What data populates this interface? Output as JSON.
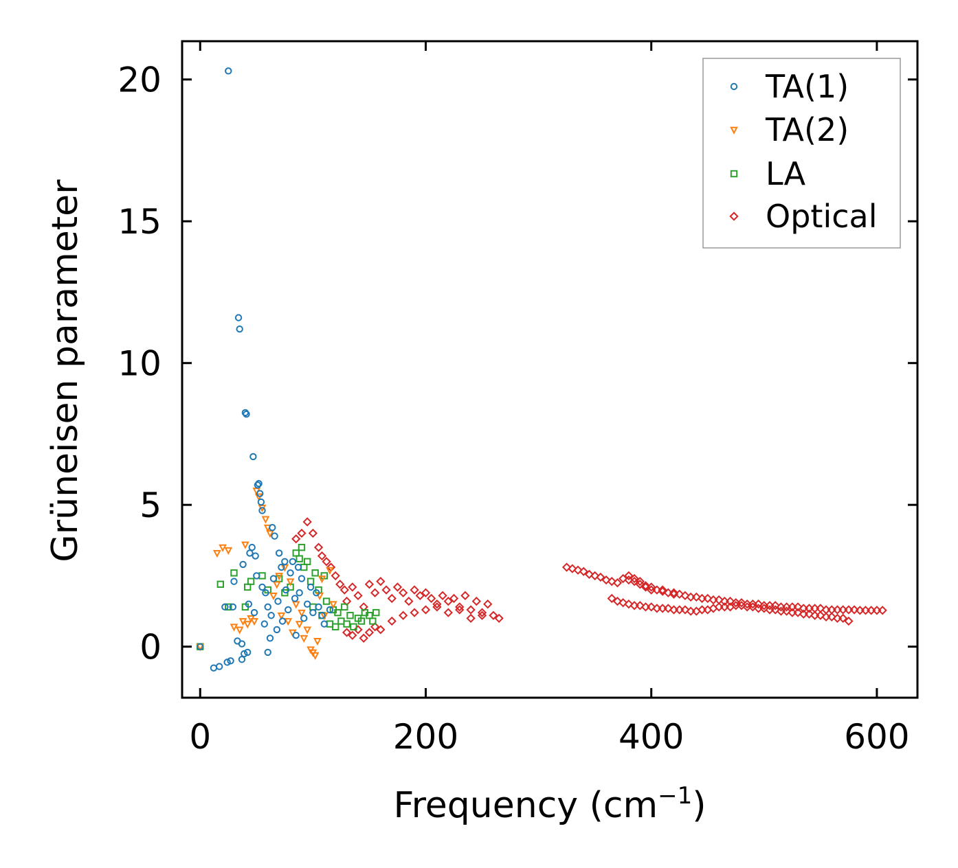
{
  "chart_data": {
    "type": "scatter",
    "title": "",
    "xlabel": "Frequency (cm",
    "xlabel_sup": "−1",
    "xlabel_close": ")",
    "ylabel": "Grüneisen parameter",
    "xlim": [
      -16,
      636
    ],
    "ylim": [
      -1.8,
      21.35
    ],
    "xticks": [
      0,
      200,
      400,
      600
    ],
    "yticks": [
      0,
      5,
      10,
      15,
      20
    ],
    "xtick_labels": [
      "0",
      "200",
      "400",
      "600"
    ],
    "ytick_labels": [
      "0",
      "5",
      "10",
      "15",
      "20"
    ],
    "grid": false,
    "legend_position": "top-right",
    "series": [
      {
        "name": "TA(1)",
        "marker": "circle",
        "color": "#1f77b4",
        "points": [
          [
            0,
            0
          ],
          [
            12,
            -0.75
          ],
          [
            17,
            -0.7
          ],
          [
            22,
            1.4
          ],
          [
            24,
            -0.55
          ],
          [
            25,
            20.3
          ],
          [
            27,
            -0.5
          ],
          [
            29,
            1.4
          ],
          [
            30,
            2.3
          ],
          [
            33,
            0.2
          ],
          [
            34,
            11.6
          ],
          [
            35,
            11.2
          ],
          [
            37,
            0.1
          ],
          [
            37,
            -0.45
          ],
          [
            38,
            2.9
          ],
          [
            39,
            -0.25
          ],
          [
            40,
            8.25
          ],
          [
            41,
            8.2
          ],
          [
            42,
            -0.2
          ],
          [
            43,
            1.5
          ],
          [
            44,
            3.3
          ],
          [
            46,
            3.5
          ],
          [
            47,
            6.7
          ],
          [
            48,
            1.2
          ],
          [
            49,
            3.2
          ],
          [
            50,
            2.5
          ],
          [
            51,
            5.7
          ],
          [
            52,
            5.75
          ],
          [
            53,
            5.4
          ],
          [
            54,
            5.1
          ],
          [
            55,
            4.8
          ],
          [
            55,
            2.1
          ],
          [
            57,
            0.8
          ],
          [
            58,
            1.9
          ],
          [
            60,
            1.4
          ],
          [
            60,
            -0.2
          ],
          [
            62,
            0.3
          ],
          [
            63,
            1.1
          ],
          [
            64,
            4.2
          ],
          [
            65,
            2.4
          ],
          [
            66,
            3.9
          ],
          [
            68,
            0.6
          ],
          [
            69,
            1.6
          ],
          [
            70,
            3.3
          ],
          [
            72,
            2.8
          ],
          [
            73,
            0.9
          ],
          [
            75,
            3.0
          ],
          [
            76,
            2.0
          ],
          [
            78,
            1.3
          ],
          [
            80,
            2.6
          ],
          [
            82,
            3.0
          ],
          [
            84,
            1.7
          ],
          [
            85,
            0.4
          ],
          [
            87,
            2.8
          ],
          [
            88,
            1.9
          ],
          [
            90,
            2.4
          ],
          [
            92,
            1.0
          ],
          [
            95,
            1.5
          ],
          [
            98,
            2.1
          ],
          [
            100,
            1.2
          ],
          [
            103,
            1.9
          ],
          [
            105,
            1.4
          ],
          [
            108,
            1.1
          ],
          [
            110,
            0.8
          ],
          [
            115,
            1.3
          ]
        ]
      },
      {
        "name": "TA(2)",
        "marker": "triangle-down",
        "color": "#ff7f0e",
        "points": [
          [
            0,
            0
          ],
          [
            15,
            3.3
          ],
          [
            20,
            3.5
          ],
          [
            25,
            3.4
          ],
          [
            30,
            0.7
          ],
          [
            35,
            0.6
          ],
          [
            38,
            0.9
          ],
          [
            40,
            3.6
          ],
          [
            42,
            0.8
          ],
          [
            45,
            1.0
          ],
          [
            48,
            0.9
          ],
          [
            50,
            5.5
          ],
          [
            52,
            5.3
          ],
          [
            55,
            4.9
          ],
          [
            58,
            4.5
          ],
          [
            60,
            4.2
          ],
          [
            62,
            4.0
          ],
          [
            65,
            1.8
          ],
          [
            68,
            2.2
          ],
          [
            70,
            2.5
          ],
          [
            72,
            1.1
          ],
          [
            75,
            2.8
          ],
          [
            78,
            0.9
          ],
          [
            80,
            2.3
          ],
          [
            82,
            0.5
          ],
          [
            85,
            1.5
          ],
          [
            88,
            0.8
          ],
          [
            90,
            1.2
          ],
          [
            92,
            0.3
          ],
          [
            95,
            0.6
          ],
          [
            98,
            -0.1
          ],
          [
            100,
            -0.2
          ],
          [
            102,
            -0.3
          ],
          [
            104,
            0.2
          ],
          [
            106,
            1.8
          ],
          [
            108,
            2.4
          ],
          [
            110,
            1.1
          ],
          [
            115,
            2.7
          ],
          [
            118,
            1.5
          ]
        ]
      },
      {
        "name": "LA",
        "marker": "square",
        "color": "#2ca02c",
        "points": [
          [
            0,
            0
          ],
          [
            18,
            2.2
          ],
          [
            25,
            1.4
          ],
          [
            30,
            2.6
          ],
          [
            40,
            1.4
          ],
          [
            42,
            2.1
          ],
          [
            45,
            2.3
          ],
          [
            55,
            2.5
          ],
          [
            60,
            2.0
          ],
          [
            70,
            2.4
          ],
          [
            75,
            1.9
          ],
          [
            80,
            2.1
          ],
          [
            85,
            3.3
          ],
          [
            88,
            3.1
          ],
          [
            90,
            3.5
          ],
          [
            92,
            2.8
          ],
          [
            95,
            3.0
          ],
          [
            98,
            2.3
          ],
          [
            100,
            1.4
          ],
          [
            102,
            2.6
          ],
          [
            105,
            2.0
          ],
          [
            108,
            1.1
          ],
          [
            110,
            2.5
          ],
          [
            112,
            1.6
          ],
          [
            115,
            0.8
          ],
          [
            118,
            1.3
          ],
          [
            120,
            0.7
          ],
          [
            122,
            1.2
          ],
          [
            125,
            0.9
          ],
          [
            128,
            1.4
          ],
          [
            130,
            0.8
          ],
          [
            133,
            1.1
          ],
          [
            136,
            0.7
          ],
          [
            140,
            1.0
          ],
          [
            143,
            0.9
          ],
          [
            146,
            1.2
          ],
          [
            150,
            1.1
          ],
          [
            153,
            0.9
          ],
          [
            156,
            1.2
          ]
        ]
      },
      {
        "name": "Optical",
        "marker": "diamond",
        "color": "#d62728",
        "points": [
          [
            85,
            3.8
          ],
          [
            90,
            4.0
          ],
          [
            95,
            4.4
          ],
          [
            100,
            4.0
          ],
          [
            105,
            3.5
          ],
          [
            108,
            3.2
          ],
          [
            112,
            3.0
          ],
          [
            116,
            2.8
          ],
          [
            120,
            2.5
          ],
          [
            124,
            2.2
          ],
          [
            128,
            2.0
          ],
          [
            130,
            1.6
          ],
          [
            135,
            2.1
          ],
          [
            140,
            1.8
          ],
          [
            145,
            1.4
          ],
          [
            150,
            2.2
          ],
          [
            155,
            1.9
          ],
          [
            160,
            2.3
          ],
          [
            165,
            2.0
          ],
          [
            170,
            1.7
          ],
          [
            175,
            2.1
          ],
          [
            180,
            1.9
          ],
          [
            185,
            1.6
          ],
          [
            190,
            2.0
          ],
          [
            195,
            1.8
          ],
          [
            200,
            1.9
          ],
          [
            205,
            1.7
          ],
          [
            210,
            1.5
          ],
          [
            215,
            1.8
          ],
          [
            220,
            1.6
          ],
          [
            225,
            1.7
          ],
          [
            230,
            1.4
          ],
          [
            235,
            1.8
          ],
          [
            240,
            1.3
          ],
          [
            245,
            1.6
          ],
          [
            250,
            1.2
          ],
          [
            255,
            1.5
          ],
          [
            260,
            1.1
          ],
          [
            265,
            1.0
          ],
          [
            130,
            0.5
          ],
          [
            135,
            0.4
          ],
          [
            140,
            0.6
          ],
          [
            145,
            0.3
          ],
          [
            150,
            0.5
          ],
          [
            155,
            0.7
          ],
          [
            160,
            0.6
          ],
          [
            170,
            0.9
          ],
          [
            180,
            1.1
          ],
          [
            190,
            1.2
          ],
          [
            200,
            1.3
          ],
          [
            210,
            1.4
          ],
          [
            220,
            1.2
          ],
          [
            230,
            1.3
          ],
          [
            240,
            1.0
          ],
          [
            250,
            1.1
          ],
          [
            325,
            2.8
          ],
          [
            330,
            2.75
          ],
          [
            335,
            2.7
          ],
          [
            340,
            2.65
          ],
          [
            345,
            2.55
          ],
          [
            350,
            2.5
          ],
          [
            355,
            2.45
          ],
          [
            360,
            2.35
          ],
          [
            365,
            2.3
          ],
          [
            370,
            2.25
          ],
          [
            375,
            2.4
          ],
          [
            380,
            2.35
          ],
          [
            385,
            2.3
          ],
          [
            390,
            2.2
          ],
          [
            395,
            2.15
          ],
          [
            400,
            2.0
          ],
          [
            405,
            2.0
          ],
          [
            410,
            1.95
          ],
          [
            415,
            1.9
          ],
          [
            420,
            1.85
          ],
          [
            425,
            1.85
          ],
          [
            430,
            1.8
          ],
          [
            435,
            1.75
          ],
          [
            440,
            1.75
          ],
          [
            445,
            1.7
          ],
          [
            450,
            1.7
          ],
          [
            455,
            1.65
          ],
          [
            460,
            1.65
          ],
          [
            465,
            1.6
          ],
          [
            470,
            1.6
          ],
          [
            475,
            1.55
          ],
          [
            480,
            1.55
          ],
          [
            485,
            1.5
          ],
          [
            490,
            1.5
          ],
          [
            495,
            1.5
          ],
          [
            500,
            1.45
          ],
          [
            505,
            1.45
          ],
          [
            510,
            1.45
          ],
          [
            515,
            1.4
          ],
          [
            520,
            1.4
          ],
          [
            525,
            1.4
          ],
          [
            530,
            1.4
          ],
          [
            535,
            1.35
          ],
          [
            540,
            1.35
          ],
          [
            545,
            1.35
          ],
          [
            550,
            1.35
          ],
          [
            555,
            1.3
          ],
          [
            560,
            1.3
          ],
          [
            565,
            1.3
          ],
          [
            570,
            1.3
          ],
          [
            575,
            1.3
          ],
          [
            580,
            1.3
          ],
          [
            585,
            1.28
          ],
          [
            590,
            1.28
          ],
          [
            595,
            1.28
          ],
          [
            600,
            1.28
          ],
          [
            605,
            1.28
          ],
          [
            365,
            1.7
          ],
          [
            370,
            1.6
          ],
          [
            375,
            1.55
          ],
          [
            380,
            1.5
          ],
          [
            385,
            1.45
          ],
          [
            390,
            1.45
          ],
          [
            395,
            1.4
          ],
          [
            400,
            1.4
          ],
          [
            405,
            1.35
          ],
          [
            410,
            1.35
          ],
          [
            415,
            1.35
          ],
          [
            420,
            1.3
          ],
          [
            425,
            1.3
          ],
          [
            430,
            1.3
          ],
          [
            435,
            1.25
          ],
          [
            440,
            1.25
          ],
          [
            445,
            1.3
          ],
          [
            450,
            1.3
          ],
          [
            455,
            1.35
          ],
          [
            460,
            1.4
          ],
          [
            465,
            1.4
          ],
          [
            470,
            1.4
          ],
          [
            475,
            1.45
          ],
          [
            480,
            1.45
          ],
          [
            485,
            1.4
          ],
          [
            490,
            1.4
          ],
          [
            495,
            1.35
          ],
          [
            500,
            1.35
          ],
          [
            505,
            1.3
          ],
          [
            510,
            1.3
          ],
          [
            515,
            1.25
          ],
          [
            520,
            1.25
          ],
          [
            525,
            1.2
          ],
          [
            530,
            1.2
          ],
          [
            535,
            1.15
          ],
          [
            540,
            1.15
          ],
          [
            545,
            1.1
          ],
          [
            550,
            1.1
          ],
          [
            555,
            1.05
          ],
          [
            560,
            1.05
          ],
          [
            565,
            1.0
          ],
          [
            570,
            1.0
          ],
          [
            575,
            0.9
          ],
          [
            380,
            2.5
          ],
          [
            385,
            2.4
          ],
          [
            390,
            2.3
          ],
          [
            395,
            2.1
          ],
          [
            400,
            2.1
          ],
          [
            410,
            2.0
          ],
          [
            420,
            1.9
          ]
        ]
      }
    ]
  }
}
